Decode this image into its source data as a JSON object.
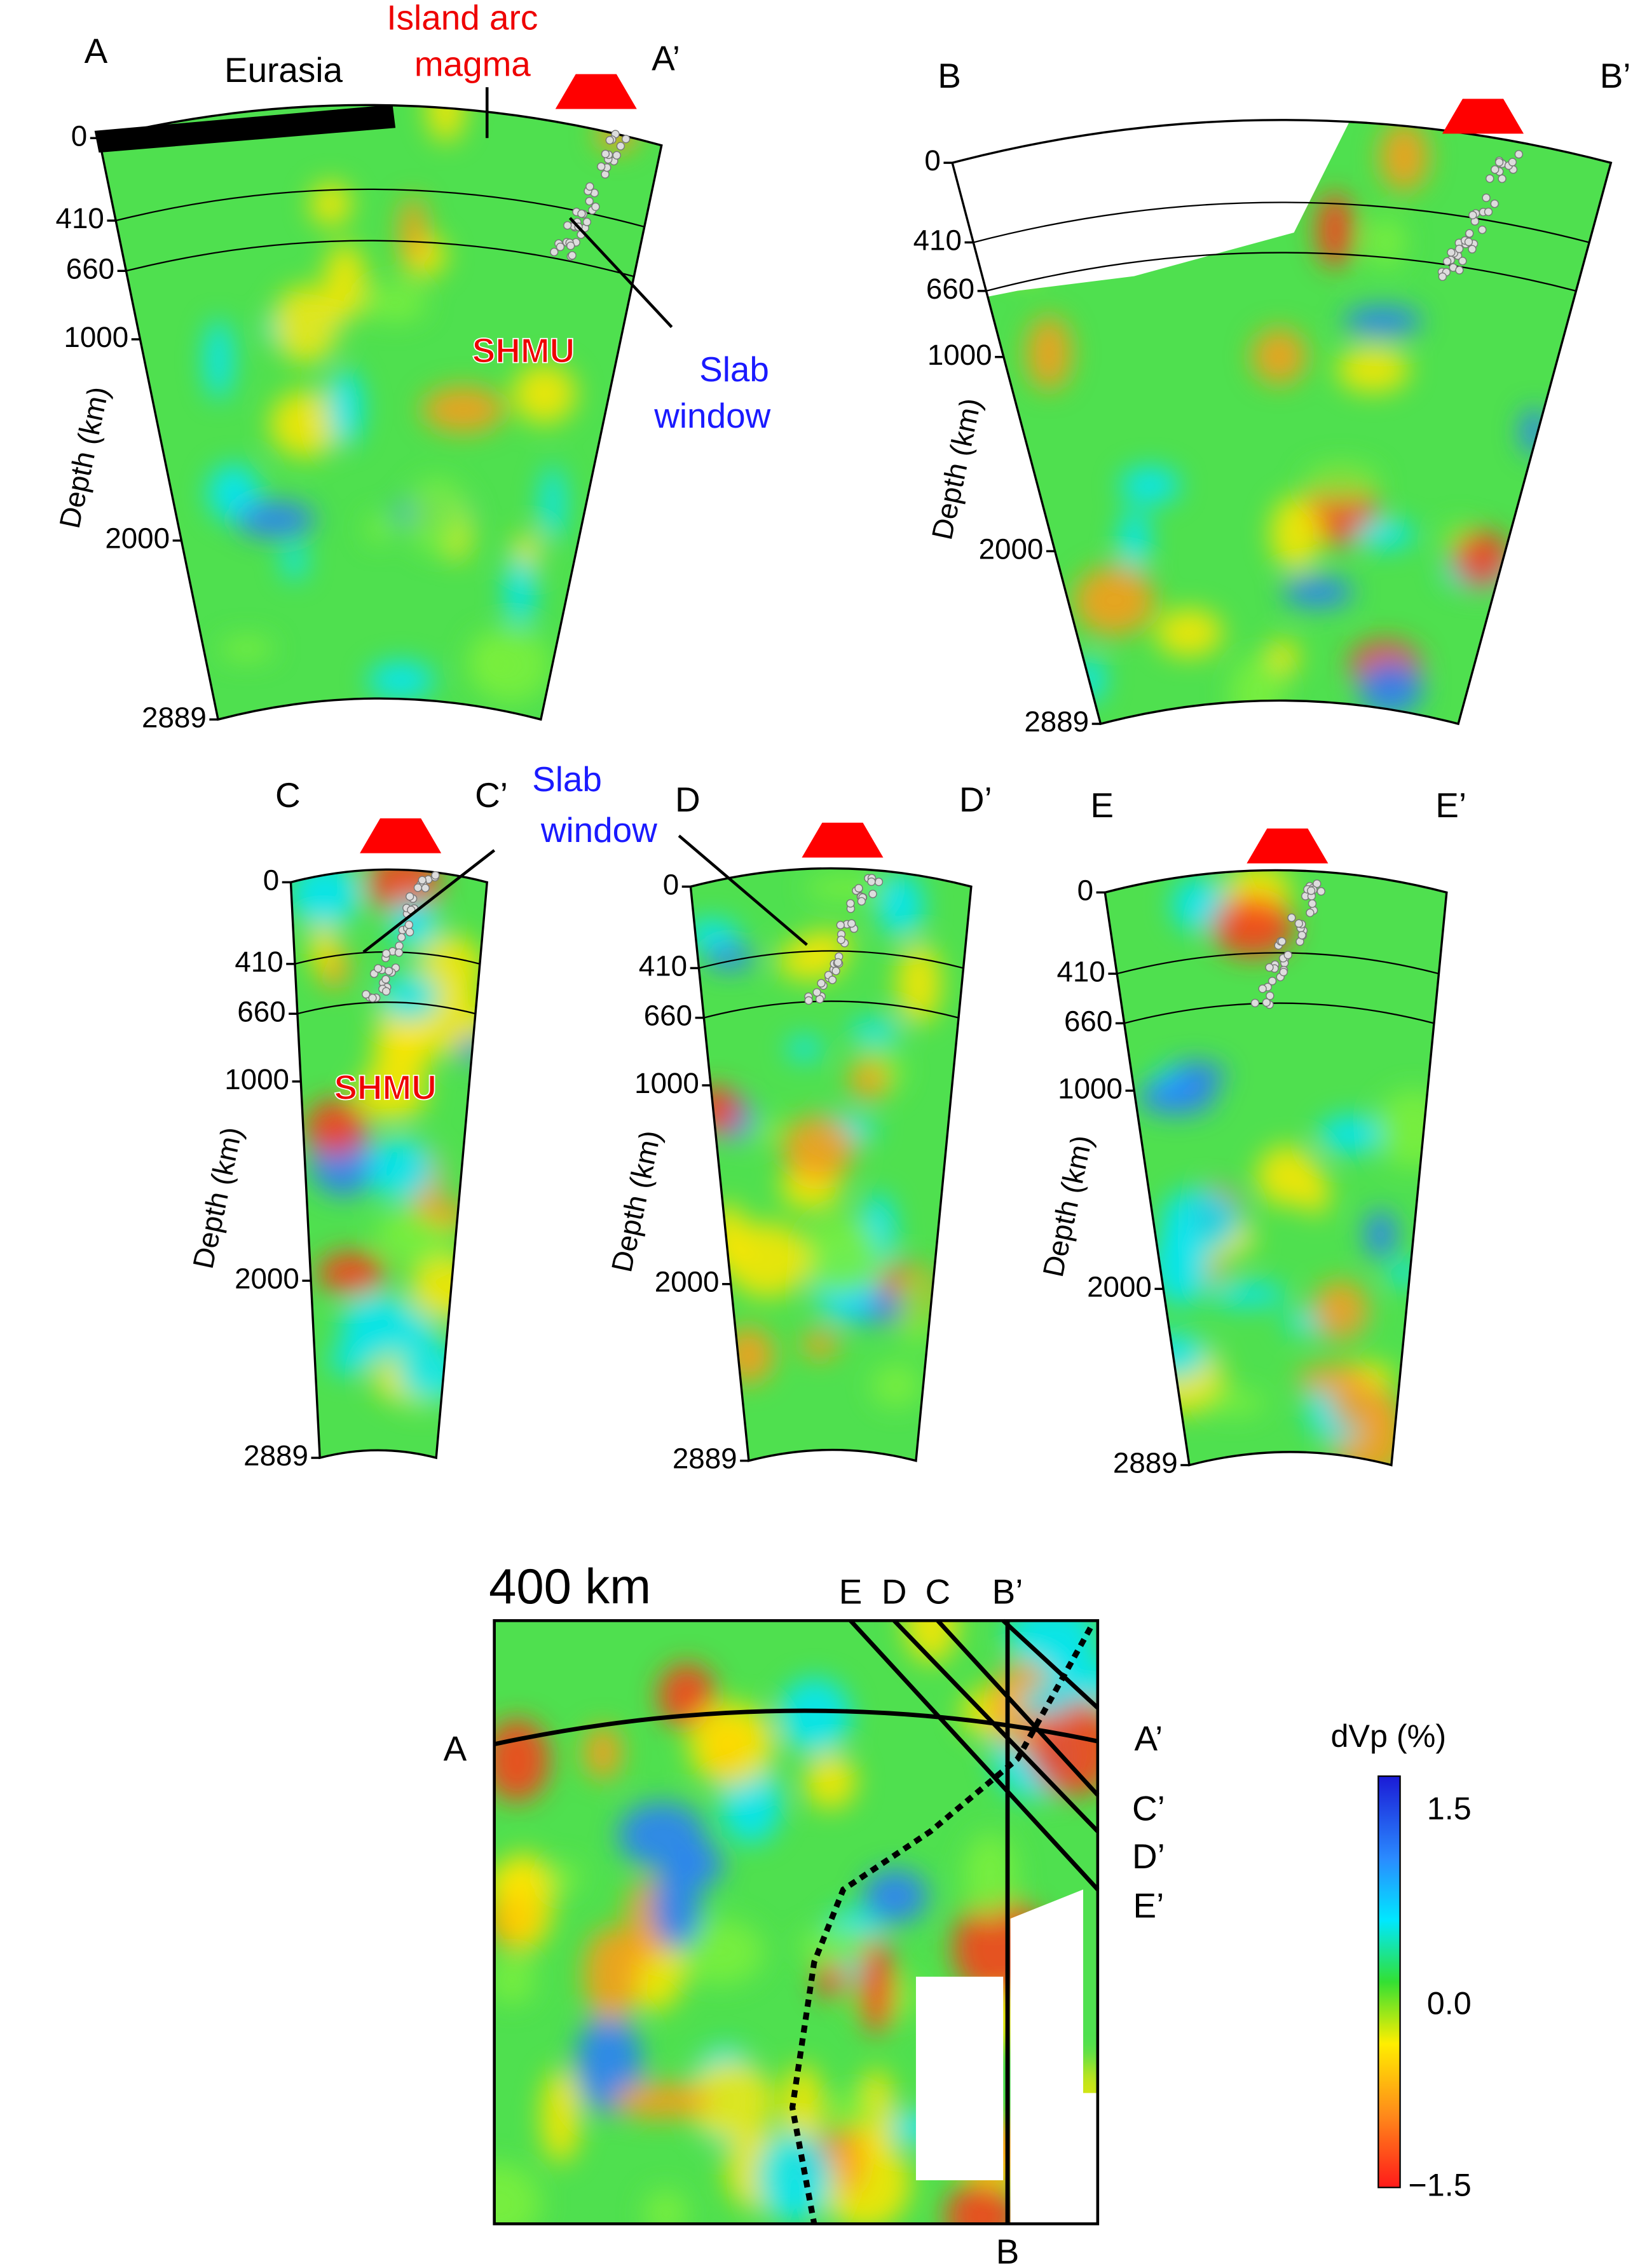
{
  "panels": [
    {
      "left_label": "A",
      "right_label": "A’",
      "depth_label": "Depth (km)",
      "depth_ticks": [
        0,
        410,
        660,
        1000,
        2000,
        2889
      ],
      "annotations": [
        "Eurasia",
        "Island arc",
        "magma",
        "SHMU",
        "Slab",
        "window"
      ]
    },
    {
      "left_label": "B",
      "right_label": "B’",
      "depth_label": "Depth (km)",
      "depth_ticks": [
        0,
        410,
        660,
        1000,
        2000,
        2889
      ],
      "annotations": []
    },
    {
      "left_label": "C",
      "right_label": "C’",
      "depth_label": "Depth (km)",
      "depth_ticks": [
        0,
        410,
        660,
        1000,
        2000,
        2889
      ],
      "annotations": [
        "Slab",
        "window",
        "SHMU"
      ]
    },
    {
      "left_label": "D",
      "right_label": "D’",
      "depth_label": "Depth (km)",
      "depth_ticks": [
        0,
        410,
        660,
        1000,
        2000,
        2889
      ],
      "annotations": []
    },
    {
      "left_label": "E",
      "right_label": "E’",
      "depth_label": "Depth (km)",
      "depth_ticks": [
        0,
        410,
        660,
        1000,
        2000,
        2889
      ],
      "annotations": []
    }
  ],
  "map": {
    "title": "400 km",
    "profile_labels": [
      "E",
      "D",
      "C",
      "B’",
      "A",
      "A’",
      "C’",
      "D’",
      "E’",
      "B"
    ]
  },
  "colorbar": {
    "title": "dVp (%)",
    "ticks": [
      "1.5",
      "0.0",
      "−1.5"
    ]
  }
}
